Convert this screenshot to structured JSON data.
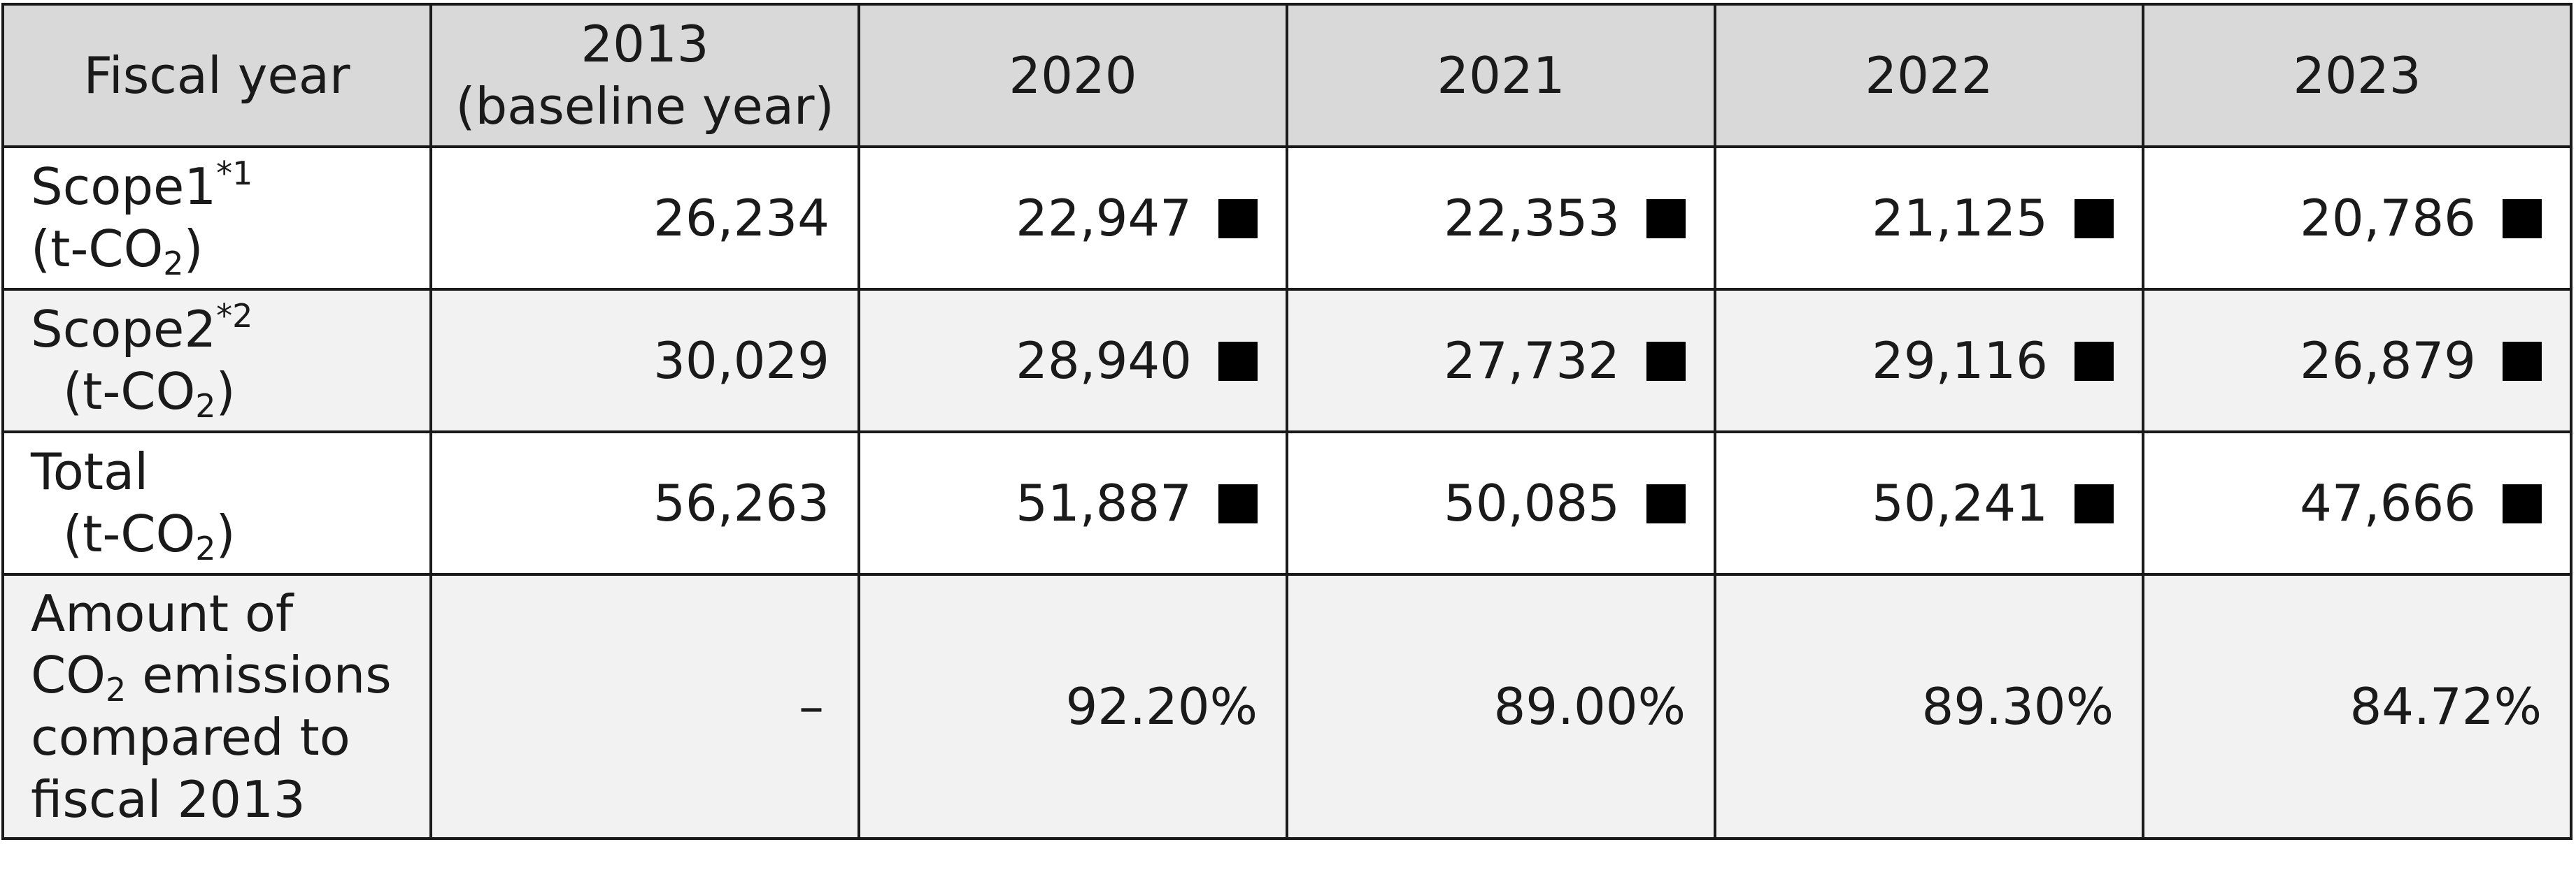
{
  "header": {
    "fiscal_year": "Fiscal year",
    "baseline_year": "2013",
    "baseline_note": "(baseline year)",
    "years": [
      "2020",
      "2021",
      "2022",
      "2023"
    ]
  },
  "rows": {
    "scope1": {
      "label": "Scope1",
      "note": "*1",
      "unit_pre": "(t-CO",
      "unit_sub": "2",
      "unit_post": ")",
      "values": [
        "26,234",
        "22,947",
        "22,353",
        "21,125",
        "20,786"
      ]
    },
    "scope2": {
      "label": "Scope2",
      "note": "*2",
      "unit_pre": "(t-CO",
      "unit_sub": "2",
      "unit_post": ")",
      "values": [
        "30,029",
        "28,940",
        "27,732",
        "29,116",
        "26,879"
      ]
    },
    "total": {
      "label": "Total",
      "unit_pre": "(t-CO",
      "unit_sub": "2",
      "unit_post": ")",
      "values": [
        "56,263",
        "51,887",
        "50,085",
        "50,241",
        "47,666"
      ]
    },
    "ratio": {
      "line1": "Amount of",
      "line2_pre": "CO",
      "line2_sub": "2",
      "line2_post": " emissions",
      "line3": "compared to",
      "line4": "fiscal 2013",
      "values": [
        "–",
        "92.20%",
        "89.00%",
        "89.30%",
        "84.72%"
      ]
    }
  },
  "marker_icon": "filled-square-icon"
}
